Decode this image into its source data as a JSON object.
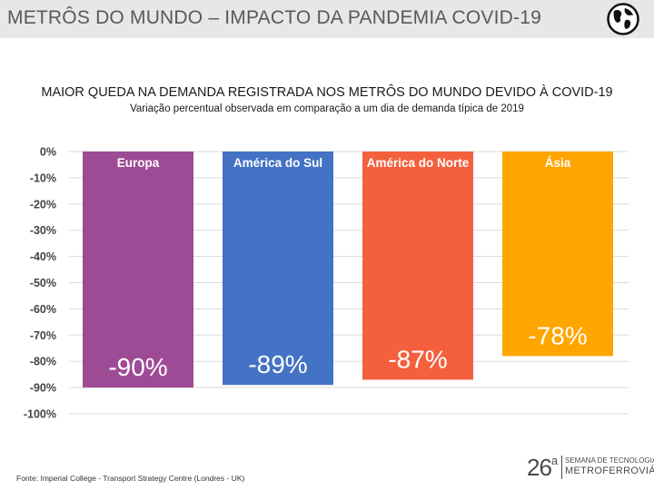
{
  "header": {
    "title": "METRÔS DO MUNDO – IMPACTO DA PANDEMIA COVID-19"
  },
  "icons": {
    "globe": "globe-icon"
  },
  "colors": {
    "header_bg": "#e7e7e7",
    "europa": "#9e4b96",
    "america_sul": "#4472c4",
    "america_norte": "#f4603e",
    "asia": "#ffa500",
    "grid": "#d9d9d9"
  },
  "chart_data": {
    "type": "bar",
    "title": "MAIOR QUEDA NA DEMANDA REGISTRADA NOS METRÔS DO MUNDO DEVIDO À COVID-19",
    "subtitle": "Variação percentual observada em comparação a um dia de demanda típica de 2019",
    "categories": [
      "Europa",
      "América do Sul",
      "América do Norte",
      "Ásia"
    ],
    "values": [
      -90,
      -89,
      -87,
      -78
    ],
    "data_labels": [
      "-90%",
      "-89%",
      "-87%",
      "-78%"
    ],
    "bar_colors": [
      "#9e4b96",
      "#4472c4",
      "#f4603e",
      "#ffa500"
    ],
    "y_ticks": [
      0,
      -10,
      -20,
      -30,
      -40,
      -50,
      -60,
      -70,
      -80,
      -90,
      -100
    ],
    "y_tick_labels": [
      "0%",
      "-10%",
      "-20%",
      "-30%",
      "-40%",
      "-50%",
      "-60%",
      "-70%",
      "-80%",
      "-90%",
      "-100%"
    ],
    "ylim": [
      -100,
      0
    ],
    "grid": true,
    "xlabel": "",
    "ylabel": ""
  },
  "footer": {
    "source": "Fonte: Imperial College - Transport Strategy Centre (Londres - UK)",
    "logo_number": "26",
    "logo_superscript": "a",
    "logo_line1": "SEMANA DE TECNOLOGIA",
    "logo_line2": "METROFERROVIÁRIA"
  }
}
